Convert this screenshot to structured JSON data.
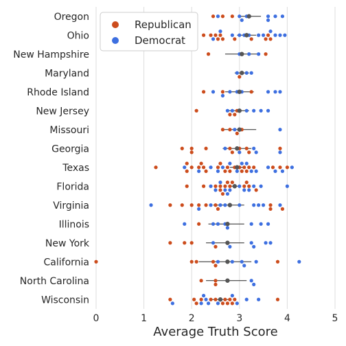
{
  "chart_data": {
    "type": "scatter",
    "subtype": "swarm with mean and error bars",
    "title": "",
    "xlabel": "Average Truth Score",
    "ylabel": "",
    "xlim": [
      0,
      5
    ],
    "xticks": [
      0,
      1,
      2,
      3,
      4,
      5
    ],
    "grid": "vertical",
    "legend_position": "top-left",
    "categories": [
      "Oregon",
      "Ohio",
      "New Hampshire",
      "Maryland",
      "Rhode Island",
      "New Jersey",
      "Missouri",
      "Georgia",
      "Texas",
      "Florida",
      "Virginia",
      "Illinois",
      "New York",
      "California",
      "North Carolina",
      "Wisconsin"
    ],
    "series": [
      {
        "name": "Republican",
        "color": "#cc4c1c",
        "points": {
          "Oregon": [
            2.45,
            2.65,
            2.85
          ],
          "Ohio": [
            2.25,
            2.4,
            2.5,
            2.55,
            2.6,
            2.65,
            2.9,
            3.25,
            3.55,
            3.6,
            3.65
          ],
          "New Hampshire": [
            2.35,
            3.55
          ],
          "Maryland": [
            3.0
          ],
          "Rhode Island": [
            2.25,
            2.65,
            3.25
          ],
          "New Jersey": [
            2.1,
            2.8,
            2.9,
            2.95
          ],
          "Missouri": [
            2.65,
            2.8,
            2.95,
            3.05
          ],
          "Georgia": [
            1.8,
            2.0,
            2.0,
            2.3,
            2.8,
            2.85,
            3.0,
            3.15,
            3.2,
            3.85
          ],
          "Texas": [
            1.25,
            1.9,
            1.9,
            2.0,
            2.15,
            2.2,
            2.25,
            2.3,
            2.55,
            2.6,
            2.7,
            2.75,
            2.8,
            2.9,
            3.0,
            3.05,
            3.1,
            3.15,
            3.2,
            3.3,
            3.7,
            3.85,
            4.0
          ],
          "Florida": [
            1.9,
            2.25,
            2.5,
            2.6,
            2.6,
            2.65,
            2.7,
            2.75,
            2.8,
            2.85,
            3.1,
            3.15,
            3.2,
            3.35
          ],
          "Virginia": [
            1.55,
            1.8,
            2.0,
            2.15,
            2.3,
            2.5,
            2.55,
            3.65,
            3.65,
            3.9
          ],
          "Illinois": [
            2.15
          ],
          "New York": [
            1.55,
            1.85,
            2.0,
            2.5
          ],
          "California": [
            0.0,
            2.0,
            2.1,
            2.45,
            2.5,
            3.8
          ],
          "North Carolina": [
            2.2,
            2.5,
            2.5
          ],
          "Wisconsin": [
            1.55,
            2.05,
            2.1,
            2.2,
            2.4,
            2.5,
            2.6,
            2.65,
            2.7,
            2.75,
            2.8,
            2.85,
            2.9,
            3.8
          ]
        }
      },
      {
        "name": "Democrat",
        "color": "#3d6fe0",
        "points": {
          "Oregon": [
            2.55,
            3.0,
            3.05,
            3.15,
            3.6,
            3.6,
            3.75,
            3.9
          ],
          "Ohio": [
            2.45,
            2.6,
            2.85,
            3.0,
            3.1,
            3.2,
            3.4,
            3.5,
            3.65,
            3.75,
            3.85,
            3.95
          ],
          "New Hampshire": [
            3.0,
            3.2,
            3.4
          ],
          "Maryland": [
            2.95,
            3.05,
            3.15,
            3.25
          ],
          "Rhode Island": [
            2.45,
            2.65,
            2.8,
            2.95,
            3.05,
            3.6,
            3.75,
            3.85
          ],
          "New Jersey": [
            2.75,
            2.85,
            3.15,
            3.3,
            3.45,
            3.6
          ],
          "Missouri": [
            2.9,
            3.85
          ],
          "Georgia": [
            2.7,
            3.0,
            3.3,
            3.35,
            3.85
          ],
          "Texas": [
            1.85,
            2.15,
            2.4,
            2.55,
            2.65,
            2.8,
            2.95,
            3.05,
            3.15,
            3.25,
            3.35,
            3.6,
            3.75,
            3.9,
            4.1
          ],
          "Florida": [
            2.4,
            2.5,
            2.6,
            2.7,
            2.75,
            2.8,
            2.9,
            3.0,
            3.1,
            3.2,
            3.3,
            3.45,
            4.0
          ],
          "Virginia": [
            1.15,
            2.15,
            2.4,
            2.6,
            2.7,
            3.0,
            3.3,
            3.4,
            3.5,
            3.85
          ],
          "Illinois": [
            1.85,
            2.45,
            2.55,
            2.7,
            2.75,
            3.25,
            3.45,
            3.6
          ],
          "New York": [
            2.45,
            2.75,
            2.8,
            3.25,
            3.3,
            3.55,
            3.65
          ],
          "California": [
            2.55,
            2.85,
            3.05,
            3.1,
            3.35,
            4.25
          ],
          "North Carolina": [
            3.25,
            3.3
          ],
          "Wisconsin": [
            1.6,
            2.2,
            2.25,
            2.3,
            2.35,
            2.55,
            2.85,
            2.95,
            3.15,
            3.4
          ]
        }
      }
    ],
    "mean_color": "#555555",
    "errorbar_color": "#262626",
    "means": [
      3.2,
      3.15,
      3.05,
      3.05,
      3.0,
      3.0,
      3.0,
      2.95,
      2.95,
      2.9,
      2.8,
      2.75,
      2.75,
      2.75,
      2.75,
      2.6
    ],
    "ci": [
      [
        3.0,
        3.45
      ],
      [
        2.95,
        3.35
      ],
      [
        2.7,
        3.4
      ],
      [
        2.9,
        3.2
      ],
      [
        2.7,
        3.3
      ],
      [
        2.75,
        3.2
      ],
      [
        2.65,
        3.35
      ],
      [
        2.65,
        3.25
      ],
      [
        2.8,
        3.1
      ],
      [
        2.8,
        3.0
      ],
      [
        2.45,
        3.1
      ],
      [
        2.35,
        3.1
      ],
      [
        2.3,
        3.1
      ],
      [
        2.15,
        3.25
      ],
      [
        2.3,
        3.15
      ],
      [
        2.4,
        2.8
      ]
    ]
  }
}
